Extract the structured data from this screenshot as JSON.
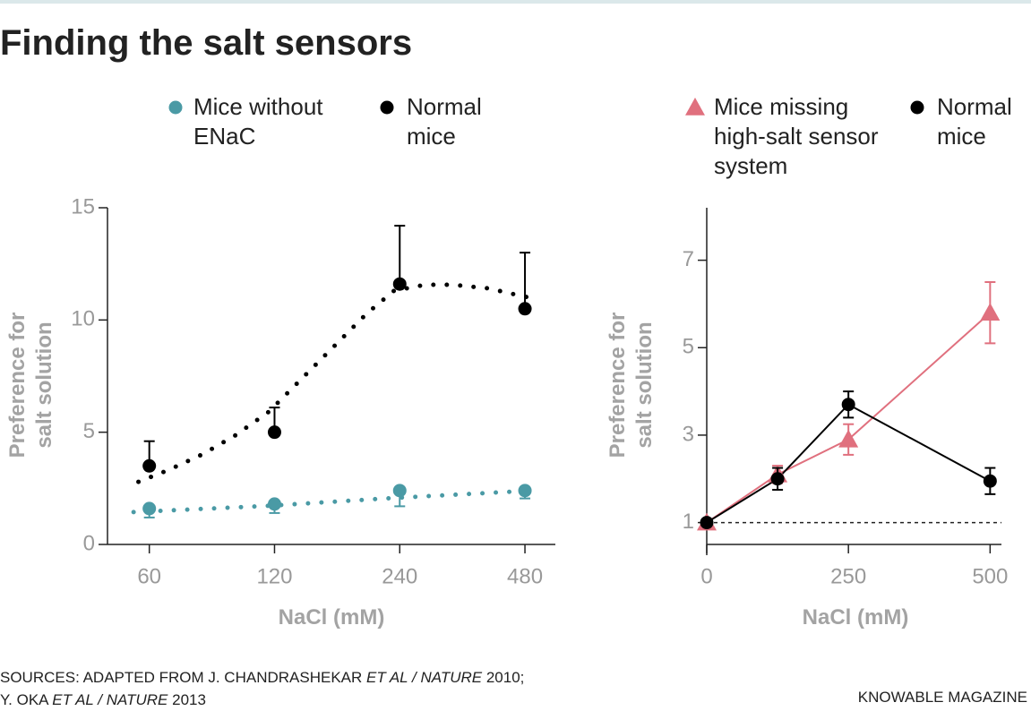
{
  "title": "Finding the salt sensors",
  "chart_data": [
    {
      "type": "line",
      "x_label": "NaCl (mM)",
      "y_label": "Preference for salt solution",
      "xscale": "log",
      "xlim": [
        47.6,
        568
      ],
      "xticks": [
        60,
        120,
        240,
        480
      ],
      "ylim": [
        0,
        15
      ],
      "yticks": [
        0,
        5,
        10,
        15
      ],
      "connect": false,
      "series": [
        {
          "name": "Mice without ENaC",
          "color": "#4a9aa5",
          "marker": "circle",
          "x": [
            60,
            120,
            240,
            480
          ],
          "values": [
            1.6,
            1.8,
            2.4,
            2.4
          ],
          "errors": [
            0.4,
            0.4,
            0.7,
            0.35
          ],
          "error_direction": "down",
          "trend": {
            "x": [
              55,
              116,
              232,
              490
            ],
            "values": [
              1.44,
              1.72,
              2.07,
              2.39
            ]
          }
        },
        {
          "name": "Normal mice",
          "color": "#000000",
          "marker": "circle",
          "x": [
            60,
            120,
            240,
            480
          ],
          "values": [
            3.5,
            5.0,
            11.6,
            10.5
          ],
          "errors": [
            1.1,
            1.1,
            2.6,
            2.5
          ],
          "error_direction": "up",
          "trend": {
            "x": [
              56.5,
              66.6,
              80.0,
              96.1,
              116.1,
              141.5,
              164.2,
              200.3,
              232.5,
              276.8,
              321,
              391,
              490
            ],
            "values": [
              2.79,
              3.31,
              3.99,
              4.83,
              5.9,
              7.5,
              8.7,
              10.3,
              11.3,
              11.57,
              11.57,
              11.41,
              11.0
            ]
          }
        }
      ]
    },
    {
      "type": "line",
      "x_label": "NaCl (mM)",
      "y_label": "Preference for salt solution",
      "xscale": "linear",
      "xlim": [
        0,
        520
      ],
      "xticks": [
        0,
        250,
        500
      ],
      "ylim": [
        0.5,
        8.2
      ],
      "yticks": [
        1,
        3,
        5,
        7
      ],
      "connect": true,
      "reference_line": 1,
      "series": [
        {
          "name": "Mice missing high-salt sensor system",
          "color": "#e0707e",
          "marker": "triangle",
          "x": [
            0,
            125,
            250,
            500
          ],
          "values": [
            1,
            2.1,
            2.9,
            5.8
          ],
          "errors": [
            null,
            0.2,
            0.35,
            0.7
          ],
          "error_direction": "both"
        },
        {
          "name": "Normal mice",
          "color": "#000000",
          "marker": "circle",
          "x": [
            0,
            125,
            250,
            500
          ],
          "values": [
            1,
            2.0,
            3.7,
            1.95
          ],
          "errors": [
            null,
            0.25,
            0.3,
            0.3
          ],
          "error_direction": "both"
        }
      ]
    }
  ],
  "sources": [
    [
      {
        "text": "SOURCES: ADAPTED FROM J. CHANDRASHEKAR "
      },
      {
        "text": "ET AL / NATURE",
        "italic": true
      },
      {
        "text": " 2010;"
      }
    ],
    [
      {
        "text": "Y. OKA "
      },
      {
        "text": "ET AL / NATURE",
        "italic": true
      },
      {
        "text": " 2013"
      }
    ]
  ],
  "credit": "KNOWABLE MAGAZINE"
}
